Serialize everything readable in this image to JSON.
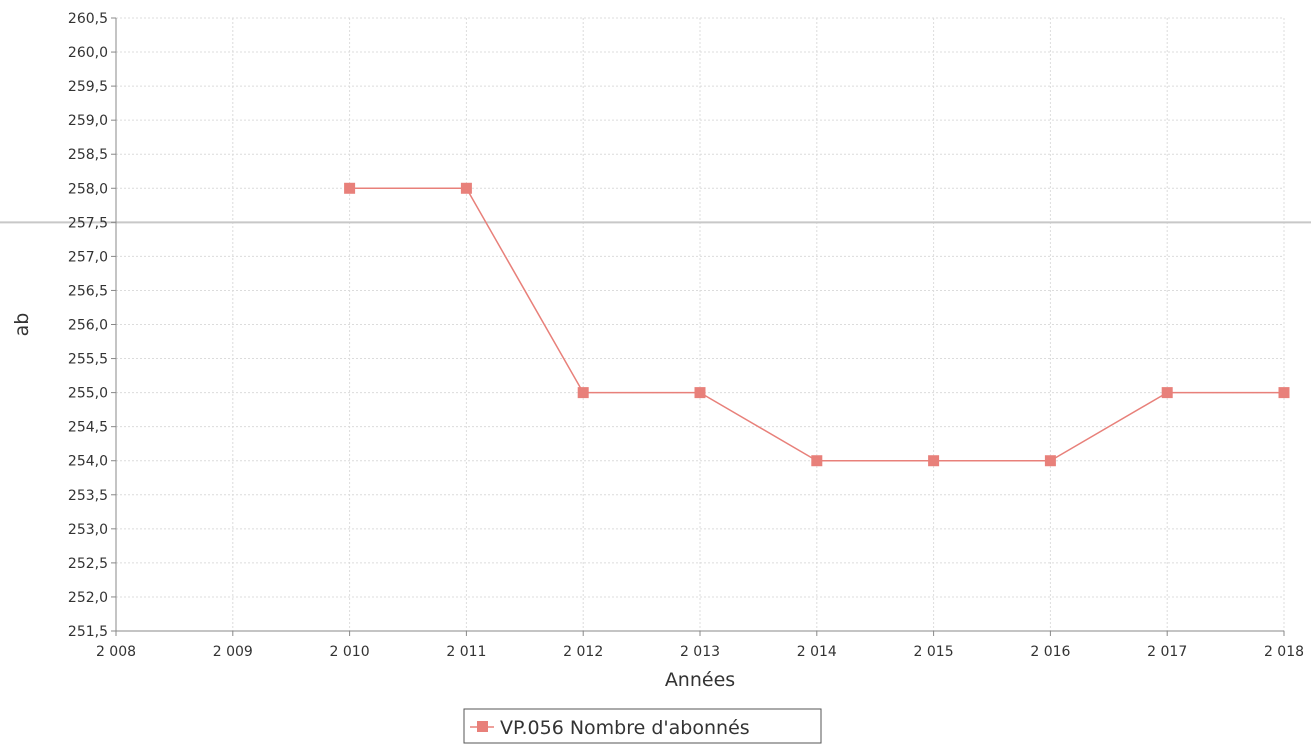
{
  "chart_data": {
    "type": "line",
    "title": "",
    "xlabel": "Années",
    "ylabel": "ab",
    "xlim": [
      2008,
      2018
    ],
    "ylim": [
      251.5,
      260.5
    ],
    "x_ticks": [
      {
        "value": 2008,
        "label": "2 008"
      },
      {
        "value": 2009,
        "label": "2 009"
      },
      {
        "value": 2010,
        "label": "2 010"
      },
      {
        "value": 2011,
        "label": "2 011"
      },
      {
        "value": 2012,
        "label": "2 012"
      },
      {
        "value": 2013,
        "label": "2 013"
      },
      {
        "value": 2014,
        "label": "2 014"
      },
      {
        "value": 2015,
        "label": "2 015"
      },
      {
        "value": 2016,
        "label": "2 016"
      },
      {
        "value": 2017,
        "label": "2 017"
      },
      {
        "value": 2018,
        "label": "2 018"
      }
    ],
    "y_ticks": [
      {
        "value": 251.5,
        "label": "251,5"
      },
      {
        "value": 252.0,
        "label": "252,0"
      },
      {
        "value": 252.5,
        "label": "252,5"
      },
      {
        "value": 253.0,
        "label": "253,0"
      },
      {
        "value": 253.5,
        "label": "253,5"
      },
      {
        "value": 254.0,
        "label": "254,0"
      },
      {
        "value": 254.5,
        "label": "254,5"
      },
      {
        "value": 255.0,
        "label": "255,0"
      },
      {
        "value": 255.5,
        "label": "255,5"
      },
      {
        "value": 256.0,
        "label": "256,0"
      },
      {
        "value": 256.5,
        "label": "256,5"
      },
      {
        "value": 257.0,
        "label": "257,0"
      },
      {
        "value": 257.5,
        "label": "257,5"
      },
      {
        "value": 258.0,
        "label": "258,0"
      },
      {
        "value": 258.5,
        "label": "258,5"
      },
      {
        "value": 259.0,
        "label": "259,0"
      },
      {
        "value": 259.5,
        "label": "259,5"
      },
      {
        "value": 260.0,
        "label": "260,0"
      },
      {
        "value": 260.5,
        "label": "260,5"
      }
    ],
    "reference_line": {
      "value": 257.5,
      "color": "#c8c8c8"
    },
    "grid": true,
    "legend_position": "bottom-center",
    "series": [
      {
        "name": "VP.056 Nombre d'abonnés",
        "color": "#e8807a",
        "marker": "square",
        "points": [
          {
            "x": 2010,
            "y": 258.0
          },
          {
            "x": 2011,
            "y": 258.0
          },
          {
            "x": 2012,
            "y": 255.0
          },
          {
            "x": 2013,
            "y": 255.0
          },
          {
            "x": 2014,
            "y": 254.0
          },
          {
            "x": 2015,
            "y": 254.0
          },
          {
            "x": 2016,
            "y": 254.0
          },
          {
            "x": 2017,
            "y": 255.0
          },
          {
            "x": 2018,
            "y": 255.0
          }
        ]
      }
    ]
  }
}
